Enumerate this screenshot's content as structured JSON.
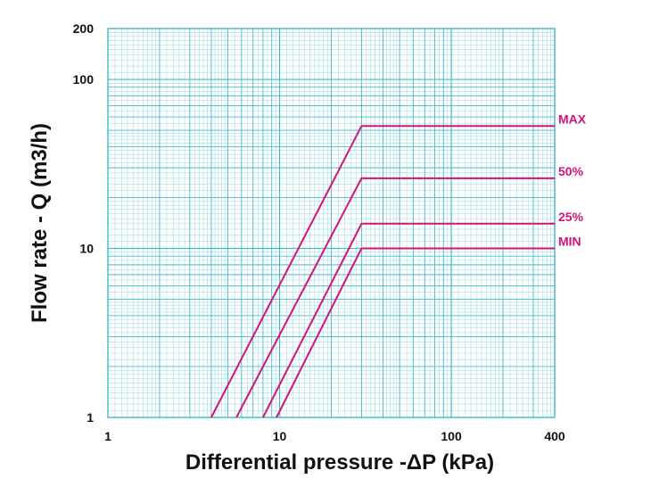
{
  "chart_data": {
    "type": "line",
    "title": "",
    "xlabel": "Differential pressure -ΔP (kPa)",
    "ylabel": "Flow rate - Q (m3/h)",
    "xscale": "log",
    "yscale": "log",
    "xlim": [
      1,
      400
    ],
    "ylim": [
      1,
      200
    ],
    "grid": true,
    "x_ticks": [
      {
        "value": 1,
        "label": "1"
      },
      {
        "value": 10,
        "label": "10"
      },
      {
        "value": 100,
        "label": "100"
      },
      {
        "value": 400,
        "label": "400"
      }
    ],
    "y_ticks": [
      {
        "value": 1,
        "label": "1"
      },
      {
        "value": 10,
        "label": "10"
      },
      {
        "value": 100,
        "label": "100"
      },
      {
        "value": 200,
        "label": "200"
      }
    ],
    "series": [
      {
        "name": "MAX",
        "points": [
          [
            4,
            1.0
          ],
          [
            30,
            53
          ],
          [
            400,
            53
          ]
        ]
      },
      {
        "name": "50%",
        "points": [
          [
            5.6,
            1.0
          ],
          [
            30,
            26
          ],
          [
            400,
            26
          ]
        ]
      },
      {
        "name": "25%",
        "points": [
          [
            8.0,
            1.0
          ],
          [
            30,
            14
          ],
          [
            400,
            14
          ]
        ]
      },
      {
        "name": "MIN",
        "points": [
          [
            9.6,
            1.0
          ],
          [
            30,
            10
          ],
          [
            400,
            10
          ]
        ]
      }
    ],
    "colors": {
      "grid": "#39b8cc",
      "series": "#d4127d",
      "text": "#111111"
    }
  }
}
